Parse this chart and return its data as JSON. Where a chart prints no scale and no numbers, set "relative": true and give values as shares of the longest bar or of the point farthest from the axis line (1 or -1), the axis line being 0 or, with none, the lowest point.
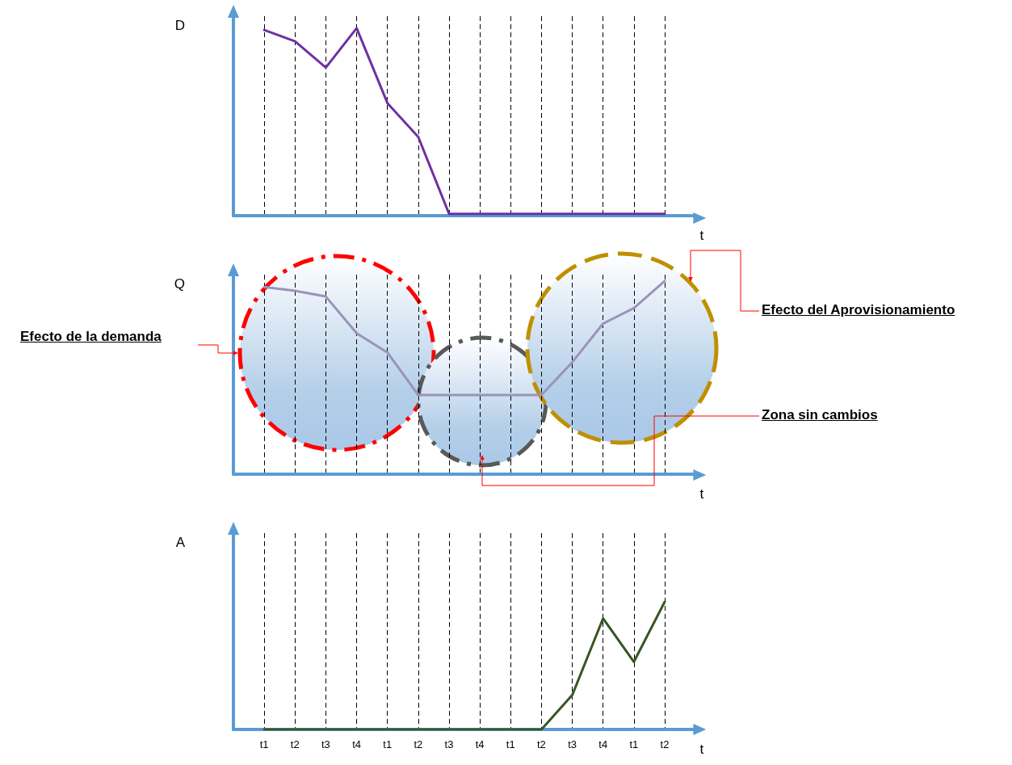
{
  "chart_data": [
    {
      "type": "line",
      "ylabel": "D",
      "xlabel": "t",
      "categories": [
        null,
        null,
        null,
        null,
        null,
        null,
        null,
        null,
        null,
        null,
        null,
        null,
        null,
        null
      ],
      "relative": true,
      "tick_labels": false,
      "grid": "x",
      "marker": "none",
      "series": [
        {
          "color": "#7030a0",
          "values": [
            0.99,
            0.93,
            0.79,
            1.0,
            0.6,
            0.42,
            0.01,
            0.01,
            0.01,
            0.01,
            0.01,
            0.01,
            0.01,
            0.01
          ]
        }
      ]
    },
    {
      "type": "line",
      "ylabel": "Q",
      "xlabel": "t",
      "categories": [
        null,
        null,
        null,
        null,
        null,
        null,
        null,
        null,
        null,
        null,
        null,
        null,
        null,
        null
      ],
      "relative": true,
      "tick_labels": false,
      "grid": "x",
      "marker": "none",
      "annotations": [
        "Efecto de la demanda",
        "Zona sin cambios",
        "Efecto del Aprovisionamiento"
      ],
      "series": [
        {
          "color": "#9a93bb",
          "values": [
            0.97,
            0.95,
            0.92,
            0.73,
            0.63,
            0.41,
            0.41,
            0.41,
            0.41,
            0.41,
            0.58,
            0.78,
            0.86,
            1.0
          ]
        }
      ]
    },
    {
      "type": "line",
      "ylabel": "A",
      "xlabel": "t",
      "categories": [
        "t1",
        "t2",
        "t3",
        "t4",
        "t1",
        "t2",
        "t3",
        "t4",
        "t1",
        "t2",
        "t3",
        "t4",
        "t1",
        "t2"
      ],
      "relative": true,
      "tick_labels": "x",
      "grid": "x",
      "marker": "none",
      "series": [
        {
          "color": "#375623",
          "values": [
            0,
            0,
            0,
            0,
            0,
            0,
            0,
            0,
            0,
            0,
            0.27,
            0.87,
            0.53,
            1.0
          ]
        }
      ]
    }
  ]
}
